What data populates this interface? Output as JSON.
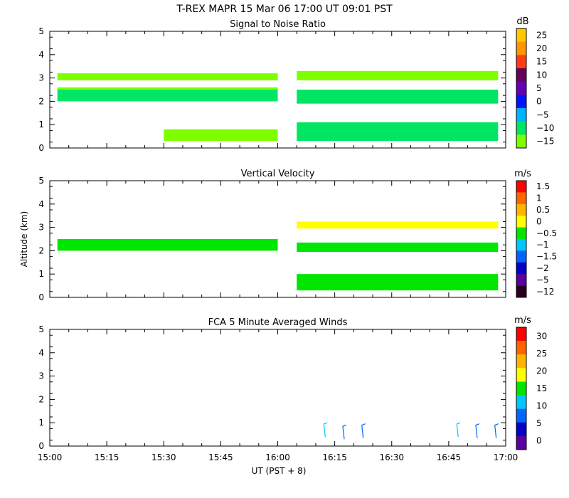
{
  "title": "T-REX   MAPR 15 Mar 06   17:00 UT   09:01   PST",
  "shared_x": {
    "label": "UT  (PST + 8)",
    "ticks": [
      "15:00",
      "15:15",
      "15:30",
      "15:45",
      "16:00",
      "16:15",
      "16:30",
      "16:45",
      "17:00"
    ],
    "range_minutes": [
      0,
      120
    ]
  },
  "shared_y": {
    "label": "Altitude (km)",
    "ticks": [
      "0",
      "1",
      "2",
      "3",
      "4",
      "5"
    ],
    "range_km": [
      0,
      5
    ]
  },
  "chart_data": [
    {
      "type": "heatmap",
      "title": "Signal to Noise Ratio",
      "unit": "dB",
      "colorbar_labels": [
        "25",
        "20",
        "15",
        "10",
        "5",
        "0",
        "−5",
        "−10",
        "−15"
      ],
      "colorbar_colors": [
        "#ffc800",
        "#ff9600",
        "#ff3c14",
        "#64005a",
        "#6400b4",
        "#0014ff",
        "#00b4ff",
        "#00e664",
        "#7dff00"
      ],
      "echo_bands": [
        {
          "t0": 2,
          "t1": 60,
          "z0": 2.0,
          "z1": 2.5,
          "color": "#00e664"
        },
        {
          "t0": 2,
          "t1": 60,
          "z0": 2.5,
          "z1": 2.6,
          "color": "#7dff00"
        },
        {
          "t0": 2,
          "t1": 60,
          "z0": 2.9,
          "z1": 3.2,
          "color": "#7dff00"
        },
        {
          "t0": 30,
          "t1": 60,
          "z0": 0.3,
          "z1": 0.8,
          "color": "#7dff00"
        },
        {
          "t0": 65,
          "t1": 118,
          "z0": 1.9,
          "z1": 2.5,
          "color": "#00e664"
        },
        {
          "t0": 65,
          "t1": 118,
          "z0": 2.9,
          "z1": 3.3,
          "color": "#7dff00"
        },
        {
          "t0": 65,
          "t1": 118,
          "z0": 0.3,
          "z1": 1.1,
          "color": "#00e664"
        }
      ]
    },
    {
      "type": "heatmap",
      "title": "Vertical Velocity",
      "unit": "m/s",
      "colorbar_labels": [
        "1.5",
        "1",
        "0.5",
        "0",
        "−0.5",
        "−1",
        "−1.5",
        "−2",
        "−5",
        "−12"
      ],
      "colorbar_colors": [
        "#ff0000",
        "#ff6400",
        "#ffb400",
        "#ffff00",
        "#00e600",
        "#00c8ff",
        "#0064ff",
        "#0000c8",
        "#5a00a0",
        "#28001e"
      ],
      "echo_bands": [
        {
          "t0": 2,
          "t1": 60,
          "z0": 2.0,
          "z1": 2.5,
          "color": "#00e600"
        },
        {
          "t0": 65,
          "t1": 118,
          "z0": 0.3,
          "z1": 1.0,
          "color": "#00e600"
        },
        {
          "t0": 65,
          "t1": 118,
          "z0": 1.95,
          "z1": 2.35,
          "color": "#00e600"
        },
        {
          "t0": 65,
          "t1": 118,
          "z0": 2.95,
          "z1": 3.25,
          "color": "#ffff00"
        }
      ]
    },
    {
      "type": "vector",
      "title": "FCA 5 Minute Averaged Winds",
      "unit": "m/s",
      "colorbar_labels": [
        "30",
        "25",
        "20",
        "15",
        "10",
        "5",
        "0"
      ],
      "colorbar_colors": [
        "#ff0000",
        "#ff6400",
        "#ffb400",
        "#ffff00",
        "#00e600",
        "#00c8ff",
        "#0064ff",
        "#0000c8",
        "#5a00a0"
      ],
      "barbs": [
        {
          "t": 72.5,
          "z": 0.7,
          "color": "#00c8ff"
        },
        {
          "t": 77.5,
          "z": 0.6,
          "color": "#0064ff"
        },
        {
          "t": 82.5,
          "z": 0.65,
          "color": "#0064ff"
        },
        {
          "t": 107.5,
          "z": 0.7,
          "color": "#00c8ff"
        },
        {
          "t": 112.5,
          "z": 0.65,
          "color": "#0064ff"
        },
        {
          "t": 117.5,
          "z": 0.65,
          "color": "#0064ff"
        }
      ]
    }
  ]
}
